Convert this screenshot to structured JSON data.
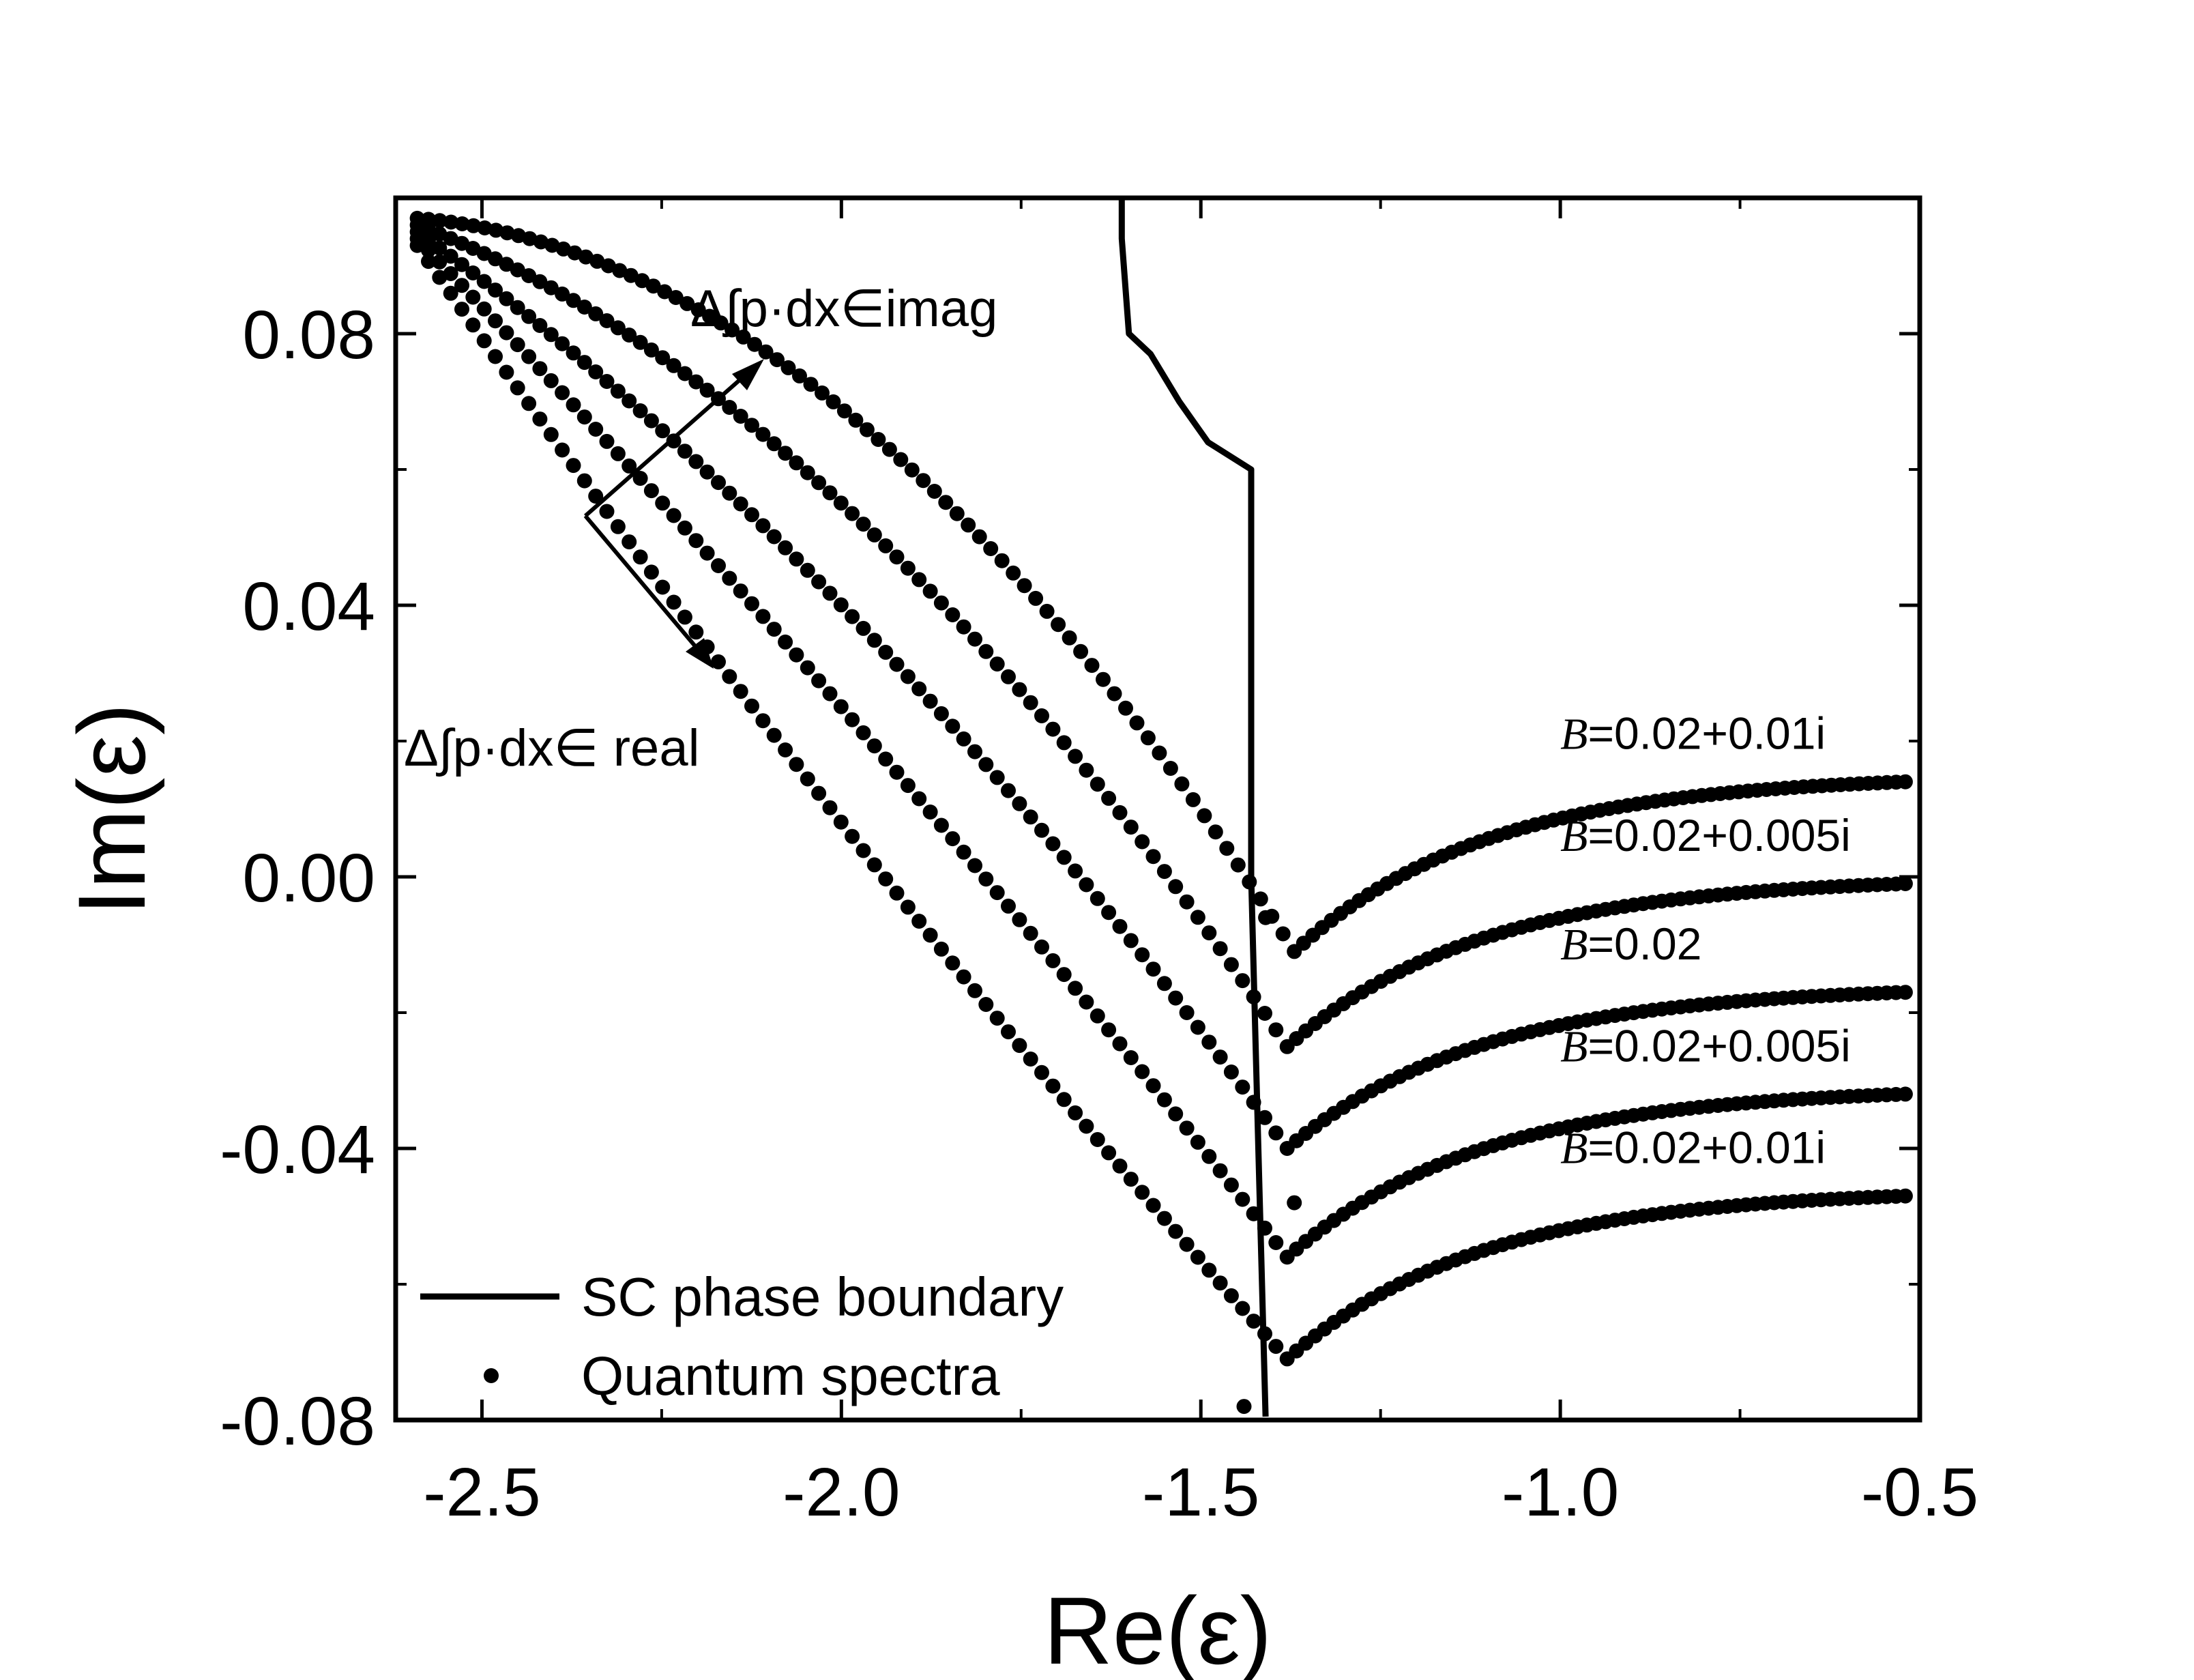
{
  "chart_data": {
    "type": "scatter",
    "xlabel": "Re(ε)",
    "ylabel": "Im(ε)",
    "xlim": [
      -2.62,
      -0.5
    ],
    "ylim": [
      -0.08,
      0.1
    ],
    "x_ticks": [
      {
        "value": -2.5,
        "label": "-2.5"
      },
      {
        "value": -2.0,
        "label": "-2.0"
      },
      {
        "value": -1.5,
        "label": "-1.5"
      },
      {
        "value": -1.0,
        "label": "-1.0"
      },
      {
        "value": -0.5,
        "label": "-0.5"
      }
    ],
    "y_ticks": [
      {
        "value": 0.08,
        "label": "0.08"
      },
      {
        "value": 0.04,
        "label": "0.04"
      },
      {
        "value": 0.0,
        "label": "0.00"
      },
      {
        "value": -0.04,
        "label": "-0.04"
      },
      {
        "value": -0.08,
        "label": "-0.08"
      }
    ],
    "boundary": {
      "name": "SC phase boundary",
      "points": [
        [
          -1.61,
          0.1
        ],
        [
          -1.61,
          0.094
        ],
        [
          -1.6,
          0.08
        ],
        [
          -1.57,
          0.077
        ],
        [
          -1.53,
          0.07
        ],
        [
          -1.49,
          0.064
        ],
        [
          -1.43,
          0.06
        ],
        [
          -1.43,
          0.0
        ],
        [
          -1.42,
          -0.04
        ],
        [
          -1.41,
          -0.0795
        ]
      ]
    },
    "series": [
      {
        "name": "B=0.02+0.01i",
        "label_prefix": "B",
        "label_suffix": "=0.02+0.01i",
        "left_end": [
          -2.59,
          0.097
        ],
        "left_mid": [
          -2.0,
          0.069
        ],
        "min": [
          -1.37,
          -0.011
        ],
        "right_end": [
          -0.52,
          0.014
        ],
        "stray_points": []
      },
      {
        "name": "B=0.02+0.005i",
        "label_prefix": "B",
        "label_suffix": "=0.02+0.005i",
        "left_end": [
          -2.59,
          0.096
        ],
        "left_mid": [
          -2.0,
          0.055
        ],
        "min": [
          -1.38,
          -0.025
        ],
        "right_end": [
          -0.52,
          -0.001
        ],
        "stray_points": [
          [
            -1.41,
            -0.006
          ]
        ]
      },
      {
        "name": "B=0.02",
        "label_prefix": "B",
        "label_suffix": "=0.02",
        "left_end": [
          -2.59,
          0.095
        ],
        "left_mid": [
          -2.0,
          0.04
        ],
        "min": [
          -1.38,
          -0.04
        ],
        "right_end": [
          -0.52,
          -0.017
        ],
        "stray_points": [
          [
            -1.37,
            -0.048
          ]
        ]
      },
      {
        "name": "B=0.02+0.005i",
        "label_prefix": "B",
        "label_suffix": "=0.02+0.005i",
        "left_end": [
          -2.59,
          0.094
        ],
        "left_mid": [
          -2.0,
          0.025
        ],
        "min": [
          -1.38,
          -0.056
        ],
        "right_end": [
          -0.52,
          -0.032
        ],
        "stray_points": []
      },
      {
        "name": "B=0.02+0.01i",
        "label_prefix": "B",
        "label_suffix": "=0.02+0.01i",
        "left_end": [
          -2.59,
          0.093
        ],
        "left_mid": [
          -2.0,
          0.008
        ],
        "min": [
          -1.38,
          -0.071
        ],
        "right_end": [
          -0.52,
          -0.047
        ],
        "stray_points": [
          [
            -1.44,
            -0.078
          ]
        ]
      }
    ],
    "annotations": {
      "imag": "Δ∫p·dx∈imag",
      "real": "Δ∫p·dx∈ real"
    },
    "legend": {
      "position": "bottom-left",
      "entries": [
        {
          "marker": "line",
          "label": "SC phase boundary"
        },
        {
          "marker": "dot",
          "label": "Quantum spectra"
        }
      ]
    }
  }
}
